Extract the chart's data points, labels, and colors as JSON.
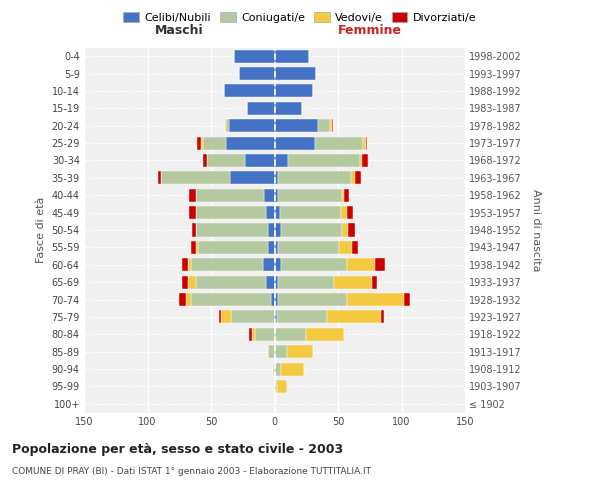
{
  "age_groups": [
    "100+",
    "95-99",
    "90-94",
    "85-89",
    "80-84",
    "75-79",
    "70-74",
    "65-69",
    "60-64",
    "55-59",
    "50-54",
    "45-49",
    "40-44",
    "35-39",
    "30-34",
    "25-29",
    "20-24",
    "15-19",
    "10-14",
    "5-9",
    "0-4"
  ],
  "birth_years": [
    "≤ 1902",
    "1903-1907",
    "1908-1912",
    "1913-1917",
    "1918-1922",
    "1923-1927",
    "1928-1932",
    "1933-1937",
    "1938-1942",
    "1943-1947",
    "1948-1952",
    "1953-1957",
    "1958-1962",
    "1963-1967",
    "1968-1972",
    "1973-1977",
    "1978-1982",
    "1983-1987",
    "1988-1992",
    "1993-1997",
    "1998-2002"
  ],
  "male": {
    "celibi": [
      0,
      0,
      0,
      0,
      0,
      0,
      3,
      7,
      9,
      5,
      5,
      7,
      8,
      35,
      23,
      38,
      36,
      22,
      40,
      28,
      32
    ],
    "coniugati": [
      0,
      0,
      1,
      5,
      15,
      34,
      63,
      55,
      57,
      55,
      57,
      55,
      54,
      54,
      30,
      18,
      2,
      0,
      0,
      0,
      0
    ],
    "vedovi": [
      0,
      0,
      0,
      0,
      3,
      8,
      4,
      6,
      2,
      2,
      0,
      0,
      0,
      0,
      0,
      2,
      1,
      0,
      0,
      0,
      0
    ],
    "divorziati": [
      0,
      0,
      0,
      0,
      2,
      2,
      5,
      5,
      5,
      4,
      3,
      5,
      5,
      3,
      3,
      3,
      0,
      0,
      0,
      0,
      0
    ]
  },
  "female": {
    "nubili": [
      0,
      0,
      0,
      0,
      0,
      2,
      3,
      3,
      5,
      3,
      5,
      4,
      3,
      3,
      11,
      32,
      34,
      22,
      30,
      33,
      27
    ],
    "coniugate": [
      0,
      2,
      5,
      10,
      25,
      39,
      54,
      44,
      52,
      48,
      48,
      48,
      50,
      57,
      56,
      38,
      10,
      0,
      0,
      0,
      0
    ],
    "vedove": [
      1,
      8,
      18,
      20,
      30,
      43,
      45,
      30,
      22,
      10,
      5,
      5,
      2,
      3,
      2,
      2,
      1,
      0,
      0,
      0,
      0
    ],
    "divorziate": [
      0,
      0,
      0,
      0,
      0,
      2,
      5,
      4,
      8,
      5,
      5,
      5,
      4,
      5,
      5,
      1,
      1,
      0,
      0,
      0,
      0
    ]
  },
  "colors": {
    "celibi": "#4472c4",
    "coniugati": "#b5c9a0",
    "vedovi": "#f5c842",
    "divorziati": "#cc0000"
  },
  "legend_labels": [
    "Celibi/Nubili",
    "Coniugati/e",
    "Vedovi/e",
    "Divorziati/e"
  ],
  "xlim": 150,
  "title": "Popolazione per età, sesso e stato civile - 2003",
  "subtitle": "COMUNE DI PRAY (BI) - Dati ISTAT 1° gennaio 2003 - Elaborazione TUTTITALIA.IT",
  "ylabel_left": "Fasce di età",
  "ylabel_right": "Anni di nascita",
  "xlabel_left": "Maschi",
  "xlabel_right": "Femmine",
  "bg_color": "#f0f0f0"
}
